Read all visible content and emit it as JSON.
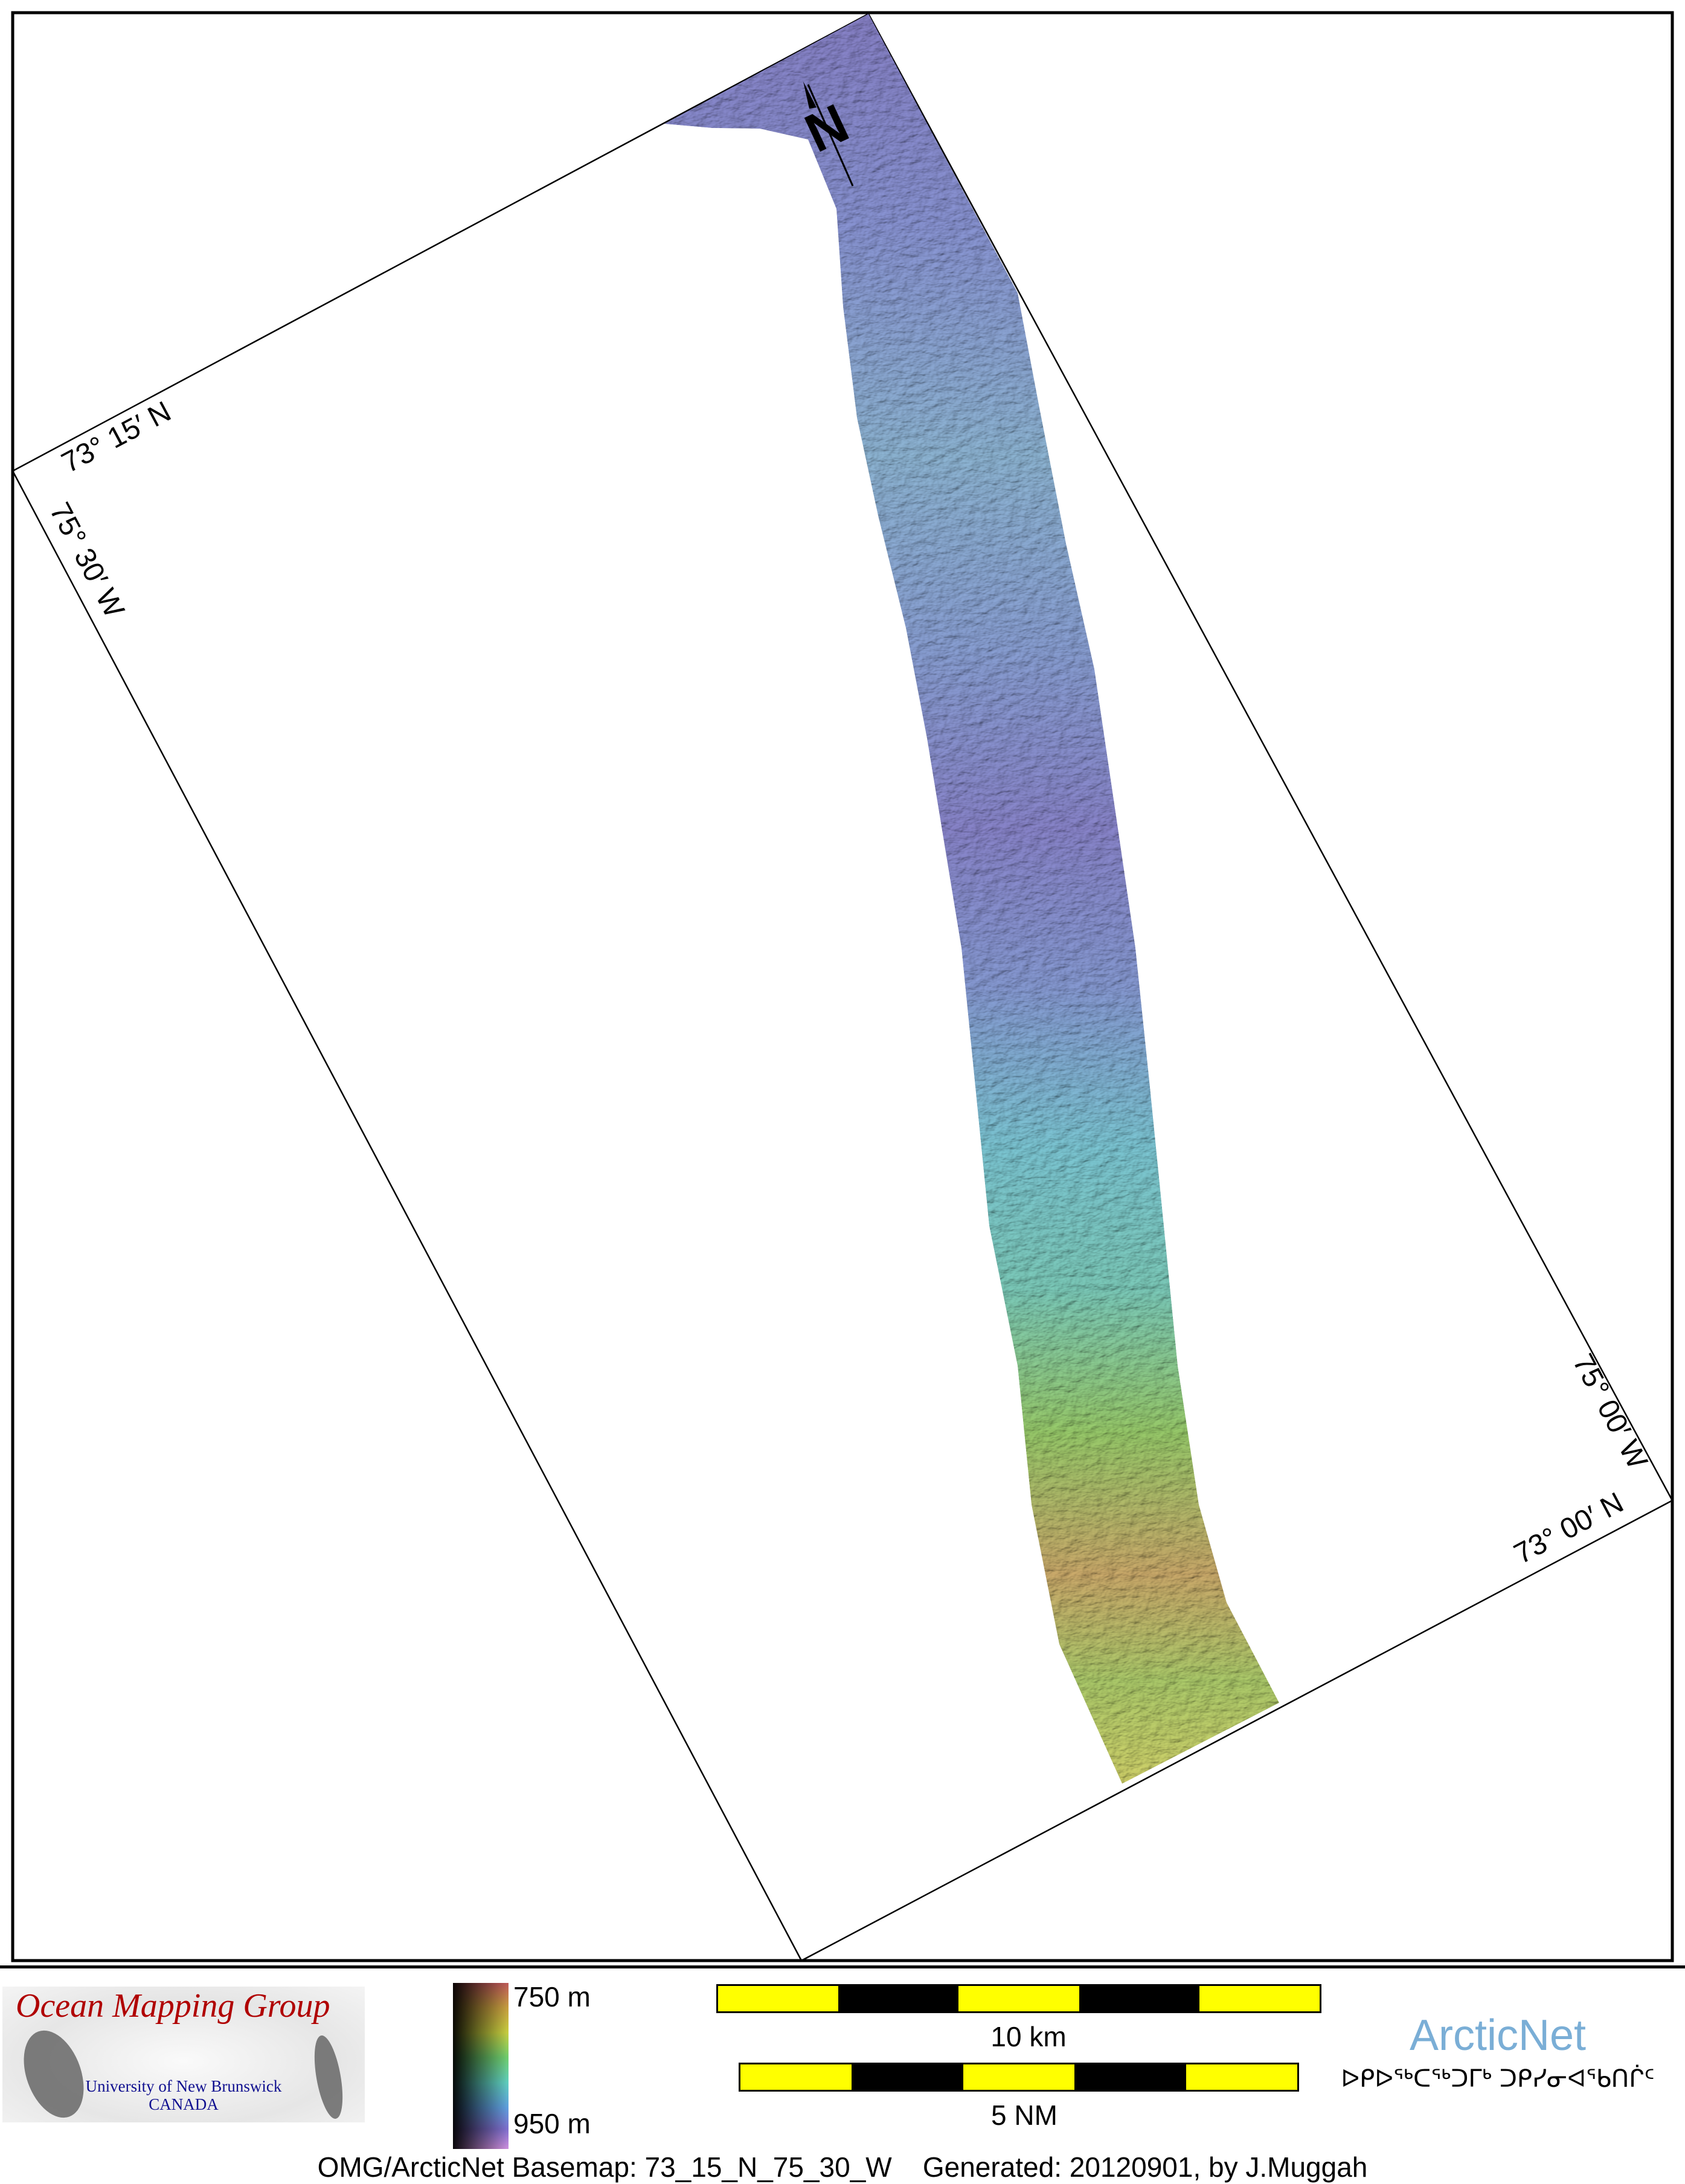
{
  "map": {
    "labels": {
      "lat_top": "73° 15′ N",
      "lon_left": "75° 30′ W",
      "lon_right": "75° 00′ W",
      "lat_bottom": "73° 00′ N"
    },
    "north_arrow": "N",
    "colors": {
      "shallow": "#c0605a",
      "deep": "#7c78b8",
      "mid": "#6fb8b8",
      "green": "#8cc060"
    }
  },
  "legend": {
    "logo": {
      "title": "Ocean Mapping Group",
      "university": "University of New Brunswick",
      "country": "CANADA"
    },
    "depth_scale": {
      "min_label": "750 m",
      "max_label": "950 m"
    },
    "scale_km": "10 km",
    "scale_nm": "5 NM",
    "arcticnet": {
      "name": "ArcticNet",
      "syllabics": "ᐅᑭᐅᖅᑕᖅᑐᒥᒃ ᑐᑭᓯᓂᐊᖃᑎᒌᑦ"
    },
    "footer": "OMG/ArcticNet Basemap: 73_15_N_75_30_W    Generated: 20120901, by J.Muggah"
  }
}
